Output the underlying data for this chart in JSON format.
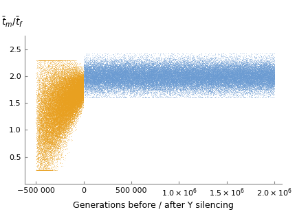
{
  "title": "$\\bar{t}_m/\\bar{t}_f$",
  "xlabel": "Generations before / after Y silencing",
  "xlim": [
    -620000,
    2080000
  ],
  "ylim": [
    0,
    2.75
  ],
  "yticks": [
    0.5,
    1.0,
    1.5,
    2.0,
    2.5
  ],
  "orange_color": "#E8A020",
  "blue_color": "#6B9BD2",
  "n_orange": 40000,
  "n_blue": 60000,
  "orange_x_min": -500000,
  "orange_x_max": -2000,
  "blue_x_min": 2000,
  "blue_x_max": 2000000,
  "seed": 42,
  "bg_color": "#ffffff",
  "point_size": 0.3,
  "point_alpha": 0.5
}
